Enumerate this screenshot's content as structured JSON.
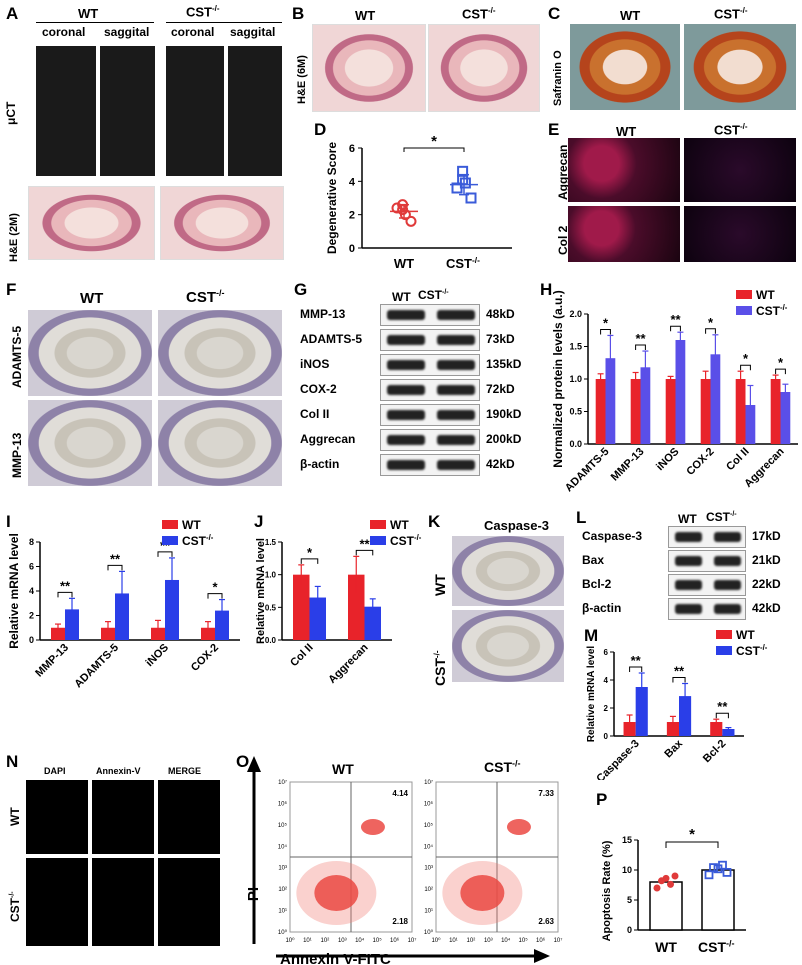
{
  "panels": {
    "A": {
      "label": "A",
      "wt": "WT",
      "cst": "CST",
      "sup": "-/-",
      "coronal": "coronal",
      "saggital": "saggital",
      "uct": "μCT",
      "he": "H&E (2M)"
    },
    "B": {
      "label": "B",
      "wt": "WT",
      "cst": "CST",
      "sup": "-/-",
      "he": "H&E (6M)"
    },
    "C": {
      "label": "C",
      "wt": "WT",
      "cst": "CST",
      "sup": "-/-",
      "stain": "Safranin O"
    },
    "D": {
      "label": "D",
      "star": "*"
    },
    "E": {
      "label": "E",
      "wt": "WT",
      "cst": "CST",
      "sup": "-/-",
      "row1": "Aggrecan",
      "row2": "Col 2"
    },
    "F": {
      "label": "F",
      "wt": "WT",
      "cst": "CST",
      "sup": "-/-",
      "row1": "ADAMTS-5",
      "row2": "MMP-13"
    },
    "G": {
      "label": "G",
      "wt": "WT",
      "cst": "CST",
      "sup": "-/-",
      "rows": [
        {
          "name": "MMP-13",
          "kd": "48kD"
        },
        {
          "name": "ADAMTS-5",
          "kd": "73kD"
        },
        {
          "name": "iNOS",
          "kd": "135kD"
        },
        {
          "name": "COX-2",
          "kd": "72kD"
        },
        {
          "name": "Col II",
          "kd": "190kD"
        },
        {
          "name": "Aggrecan",
          "kd": "200kD"
        },
        {
          "name": "β-actin",
          "kd": "42kD"
        }
      ]
    },
    "H": {
      "label": "H"
    },
    "I": {
      "label": "I"
    },
    "J": {
      "label": "J"
    },
    "K": {
      "label": "K",
      "title": "Caspase-3",
      "wt": "WT",
      "cst": "CST",
      "sup": "-/-"
    },
    "L": {
      "label": "L",
      "wt": "WT",
      "cst": "CST",
      "sup": "-/-",
      "rows": [
        {
          "name": "Caspase-3",
          "kd": "17kD"
        },
        {
          "name": "Bax",
          "kd": "21kD"
        },
        {
          "name": "Bcl-2",
          "kd": "22kD"
        },
        {
          "name": "β-actin",
          "kd": "42kD"
        }
      ]
    },
    "M": {
      "label": "M"
    },
    "N": {
      "label": "N",
      "cols": [
        "DAPI",
        "Annexin-V",
        "MERGE"
      ],
      "wt": "WT",
      "cst": "CST",
      "sup": "-/-"
    },
    "O": {
      "label": "O",
      "wt": "WT",
      "cst": "CST",
      "sup": "-/-",
      "ylabel": "PI",
      "xlabel": "Annexin V-FITC",
      "wt_q": {
        "ur": "4.14",
        "lr": "2.18"
      },
      "cst_q": {
        "ur": "7.33",
        "lr": "2.63"
      },
      "ticks": [
        "10⁰",
        "10¹",
        "10²",
        "10³",
        "10⁴",
        "10⁵",
        "10⁶",
        "10⁷"
      ]
    },
    "P": {
      "label": "P",
      "star": "*"
    }
  },
  "chart_data": [
    {
      "id": "D",
      "type": "scatter",
      "ylabel": "Degenerative Score",
      "categories": [
        "WT",
        "CST-/-"
      ],
      "points": {
        "WT": [
          2.6,
          2.0,
          2.3,
          1.6,
          2.4
        ],
        "CST-/-": [
          4.6,
          3.9,
          4.1,
          3.0,
          3.6
        ]
      },
      "mean": [
        2.2,
        3.8
      ],
      "sd": [
        0.4,
        0.6
      ],
      "ylim": [
        0,
        6
      ],
      "yticks": [
        0,
        2,
        4,
        6
      ],
      "annotation": "*",
      "colors": {
        "WT": "#e03a3a",
        "CST-/-": "#3a5bd9"
      }
    },
    {
      "id": "H",
      "type": "bar",
      "ylabel": "Normalized protein levels (a.u.)",
      "categories": [
        "ADAMTS-5",
        "MMP-13",
        "iNOS",
        "COX-2",
        "Col II",
        "Aggrecan"
      ],
      "series": [
        {
          "name": "WT",
          "values": [
            1.0,
            1.0,
            1.0,
            1.0,
            1.0,
            1.0
          ],
          "err": [
            0.08,
            0.1,
            0.04,
            0.12,
            0.12,
            0.06
          ],
          "color": "#e8232a"
        },
        {
          "name": "CST-/-",
          "values": [
            1.32,
            1.18,
            1.6,
            1.38,
            0.6,
            0.8
          ],
          "err": [
            0.35,
            0.25,
            0.12,
            0.3,
            0.3,
            0.12
          ],
          "color": "#5a4fe8"
        }
      ],
      "ylim": [
        0,
        2.0
      ],
      "yticks": [
        0.0,
        0.5,
        1.0,
        1.5,
        2.0
      ],
      "sig": [
        "*",
        "**",
        "**",
        "*",
        "*",
        "*"
      ]
    },
    {
      "id": "I",
      "type": "bar",
      "ylabel": "Relative mRNA level",
      "categories": [
        "MMP-13",
        "ADAMTS-5",
        "iNOS",
        "COX-2"
      ],
      "series": [
        {
          "name": "WT",
          "values": [
            1.0,
            1.0,
            1.0,
            1.0
          ],
          "err": [
            0.3,
            0.5,
            0.6,
            0.5
          ],
          "color": "#e8232a"
        },
        {
          "name": "CST-/-",
          "values": [
            2.5,
            3.8,
            4.9,
            2.4
          ],
          "err": [
            0.9,
            1.8,
            1.8,
            0.9
          ],
          "color": "#2a3ee8"
        }
      ],
      "ylim": [
        0,
        8
      ],
      "yticks": [
        0,
        2,
        4,
        6,
        8
      ],
      "sig": [
        "**",
        "**",
        "**",
        "*"
      ]
    },
    {
      "id": "J",
      "type": "bar",
      "ylabel": "Relative mRNA level",
      "categories": [
        "Col II",
        "Aggrecan"
      ],
      "series": [
        {
          "name": "WT",
          "values": [
            1.0,
            1.0
          ],
          "err": [
            0.15,
            0.28
          ],
          "color": "#e8232a"
        },
        {
          "name": "CST-/-",
          "values": [
            0.65,
            0.51
          ],
          "err": [
            0.17,
            0.12
          ],
          "color": "#2a3ee8"
        }
      ],
      "ylim": [
        0,
        1.5
      ],
      "yticks": [
        0.0,
        0.5,
        1.0,
        1.5
      ],
      "sig": [
        "*",
        "**"
      ]
    },
    {
      "id": "M",
      "type": "bar",
      "ylabel": "Relative mRNA level",
      "categories": [
        "Caspase-3",
        "Bax",
        "Bcl-2"
      ],
      "series": [
        {
          "name": "WT",
          "values": [
            1.0,
            1.0,
            1.0
          ],
          "err": [
            0.5,
            0.4,
            0.2
          ],
          "color": "#e8232a"
        },
        {
          "name": "CST-/-",
          "values": [
            3.5,
            2.85,
            0.5
          ],
          "err": [
            1.0,
            0.9,
            0.1
          ],
          "color": "#2a3ee8"
        }
      ],
      "ylim": [
        0,
        6
      ],
      "yticks": [
        0,
        2,
        4,
        6
      ],
      "sig": [
        "**",
        "**",
        "**"
      ]
    },
    {
      "id": "P",
      "type": "scatter",
      "ylabel": "Apoptosis Rate (%)",
      "categories": [
        "WT",
        "CST-/-"
      ],
      "bars": [
        8.0,
        10.0
      ],
      "points": {
        "WT": [
          7.0,
          8.2,
          8.6,
          7.6,
          9.0
        ],
        "CST-/-": [
          9.2,
          10.4,
          10.2,
          10.8,
          9.6
        ]
      },
      "ylim": [
        0,
        15
      ],
      "yticks": [
        0,
        5,
        10,
        15
      ],
      "annotation": "*"
    }
  ],
  "legend": {
    "wt": "WT",
    "cst": "CST",
    "sup": "-/-"
  }
}
